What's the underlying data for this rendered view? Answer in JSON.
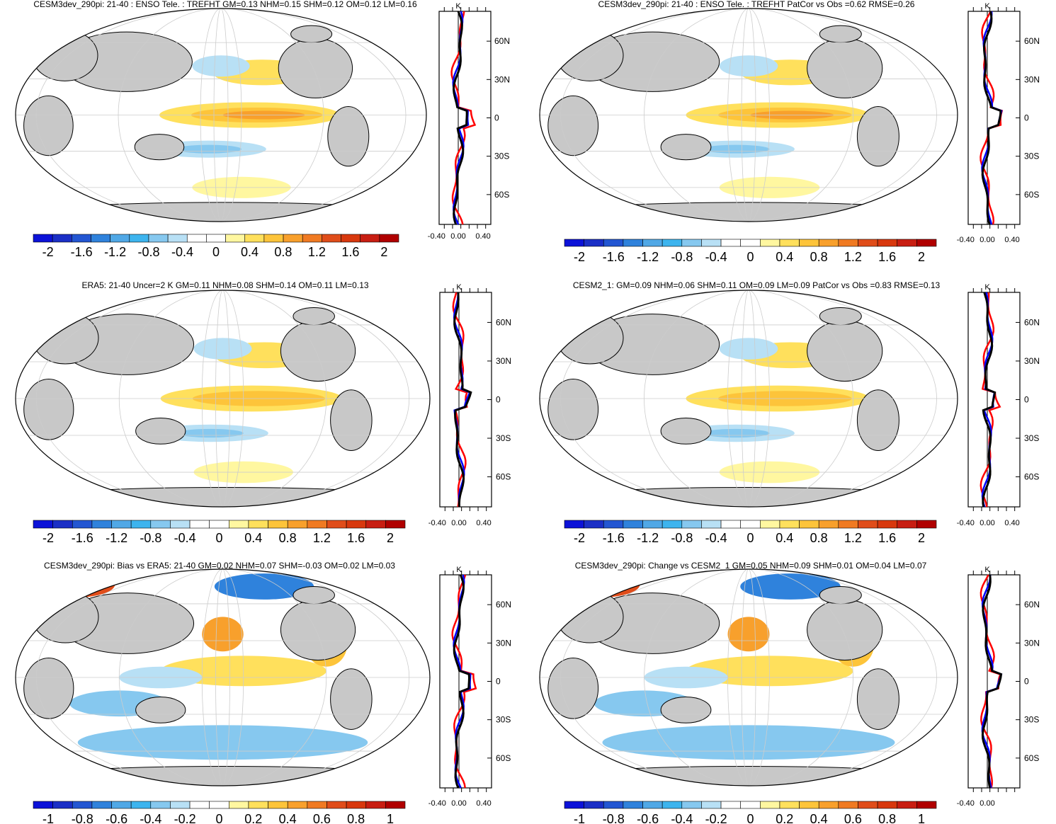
{
  "colors": {
    "land": "#c8c8c8",
    "ocean": "#ffffff",
    "warm": [
      "#fff7a0",
      "#ffe05c",
      "#fdc43a",
      "#f8a02c",
      "#f07a22",
      "#e04d1a",
      "#c81e12"
    ],
    "cool": [
      "#b8e0f5",
      "#86c8ef",
      "#50a8e6",
      "#2f82dc",
      "#2356d2",
      "#1b2fc6",
      "#0c12d8"
    ],
    "line_black": "#000000",
    "line_red": "#ff0000",
    "line_blue": "#0000ff"
  },
  "panels": [
    {
      "id": "p1",
      "title": "CESM3dev_290pi: 21-40 : ENSO Tele. : TREFHT GM=0.13 NHM=0.15 SHM=0.12 OM=0.12 LM=0.16",
      "colorbar_labels": [
        "-2",
        "-1.6",
        "-1.2",
        "-0.8",
        "-0.4",
        "0",
        "0.4",
        "0.8",
        "1.2",
        "1.6",
        "2"
      ],
      "zonal_x_labels": [
        "-0.40",
        "0.00",
        "0.40"
      ],
      "zonal_unit": "K",
      "lat_labels": [
        "60N",
        "30N",
        "0",
        "30S",
        "60S"
      ]
    },
    {
      "id": "p2",
      "title": "CESM3dev_290pi: 21-40 : ENSO Tele. : TREFHT PatCor vs Obs =0.62 RMSE=0.26",
      "colorbar_labels": [
        "-2",
        "-1.6",
        "-1.2",
        "-0.8",
        "-0.4",
        "0",
        "0.4",
        "0.8",
        "1.2",
        "1.6",
        "2"
      ],
      "zonal_x_labels": [
        "-0.40",
        "0.00",
        "0.40"
      ],
      "zonal_unit": "K",
      "lat_labels": [
        "60N",
        "30N",
        "0",
        "30S",
        "60S"
      ]
    },
    {
      "id": "p3",
      "title": "ERA5: 21-40 Uncer=2 K GM=0.11 NHM=0.08 SHM=0.14 OM=0.11 LM=0.13",
      "colorbar_labels": [
        "-2",
        "-1.6",
        "-1.2",
        "-0.8",
        "-0.4",
        "0",
        "0.4",
        "0.8",
        "1.2",
        "1.6",
        "2"
      ],
      "zonal_x_labels": [
        "-0.40",
        "0.00",
        "0.40"
      ],
      "zonal_unit": "K",
      "lat_labels": [
        "60N",
        "30N",
        "0",
        "30S",
        "60S"
      ]
    },
    {
      "id": "p4",
      "title": "CESM2_1: GM=0.09 NHM=0.06 SHM=0.11 OM=0.09 LM=0.09 PatCor vs Obs =0.83 RMSE=0.13",
      "colorbar_labels": [
        "-2",
        "-1.6",
        "-1.2",
        "-0.8",
        "-0.4",
        "0",
        "0.4",
        "0.8",
        "1.2",
        "1.6",
        "2"
      ],
      "zonal_x_labels": [
        "-0.40",
        "0.00",
        "0.40"
      ],
      "zonal_unit": "K",
      "lat_labels": [
        "60N",
        "30N",
        "0",
        "30S",
        "60S"
      ]
    },
    {
      "id": "p5",
      "title": "CESM3dev_290pi: Bias vs ERA5: 21-40 GM=0.02 NHM=0.07 SHM=-0.03 OM=0.02 LM=0.03",
      "colorbar_labels": [
        "-1",
        "-0.8",
        "-0.6",
        "-0.4",
        "-0.2",
        "0",
        "0.2",
        "0.4",
        "0.6",
        "0.8",
        "1"
      ],
      "zonal_x_labels": [
        "-0.40",
        "0.00",
        "0.40"
      ],
      "zonal_unit": "K",
      "lat_labels": [
        "60N",
        "30N",
        "0",
        "30S",
        "60S"
      ]
    },
    {
      "id": "p6",
      "title": "CESM3dev_290pi: Change vs CESM2_1 GM=0.05 NHM=0.09 SHM=0.01 OM=0.04 LM=0.07",
      "colorbar_labels": [
        "-1",
        "-0.8",
        "-0.6",
        "-0.4",
        "-0.2",
        "0",
        "0.2",
        "0.4",
        "0.6",
        "0.8",
        "1"
      ],
      "zonal_x_labels": [
        "-0.40",
        "0.00"
      ],
      "zonal_unit": "K",
      "lat_labels": [
        "60N",
        "30N",
        "0",
        "30S",
        "60S"
      ]
    }
  ]
}
